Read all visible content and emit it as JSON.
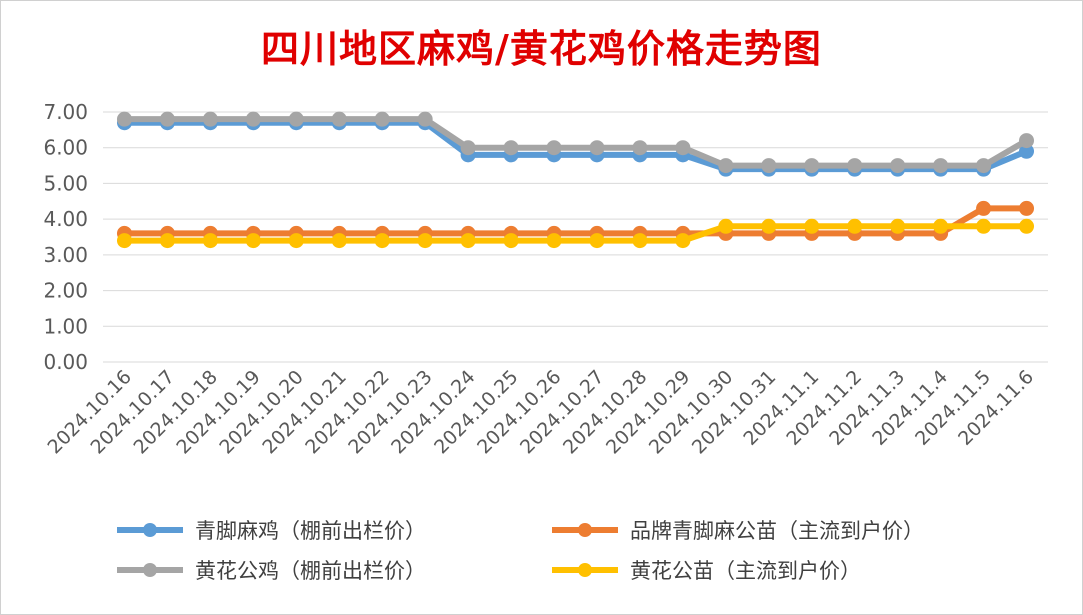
{
  "chart_data": {
    "type": "line",
    "title": "四川地区麻鸡/黄花鸡价格走势图",
    "x": [
      "2024.10.16",
      "2024.10.17",
      "2024.10.18",
      "2024.10.19",
      "2024.10.20",
      "2024.10.21",
      "2024.10.22",
      "2024.10.23",
      "2024.10.24",
      "2024.10.25",
      "2024.10.26",
      "2024.10.27",
      "2024.10.28",
      "2024.10.29",
      "2024.10.30",
      "2024.10.31",
      "2024.11.1",
      "2024.11.2",
      "2024.11.3",
      "2024.11.4",
      "2024.11.5",
      "2024.11.6"
    ],
    "y_ticks": [
      "0.00",
      "1.00",
      "2.00",
      "3.00",
      "4.00",
      "5.00",
      "6.00",
      "7.00"
    ],
    "ylim": [
      0,
      7
    ],
    "grid": true,
    "legend_position": "bottom",
    "series": [
      {
        "name": "青脚麻鸡（棚前出栏价）",
        "color": "#5b9bd5",
        "values": [
          6.7,
          6.7,
          6.7,
          6.7,
          6.7,
          6.7,
          6.7,
          6.7,
          5.8,
          5.8,
          5.8,
          5.8,
          5.8,
          5.8,
          5.4,
          5.4,
          5.4,
          5.4,
          5.4,
          5.4,
          5.4,
          5.9
        ]
      },
      {
        "name": "品牌青脚麻公苗（主流到户价）",
        "color": "#ed7d31",
        "values": [
          3.6,
          3.6,
          3.6,
          3.6,
          3.6,
          3.6,
          3.6,
          3.6,
          3.6,
          3.6,
          3.6,
          3.6,
          3.6,
          3.6,
          3.6,
          3.6,
          3.6,
          3.6,
          3.6,
          3.6,
          4.3,
          4.3
        ]
      },
      {
        "name": "黄花公鸡（棚前出栏价）",
        "color": "#a5a5a5",
        "values": [
          6.8,
          6.8,
          6.8,
          6.8,
          6.8,
          6.8,
          6.8,
          6.8,
          6.0,
          6.0,
          6.0,
          6.0,
          6.0,
          6.0,
          5.5,
          5.5,
          5.5,
          5.5,
          5.5,
          5.5,
          5.5,
          6.2
        ]
      },
      {
        "name": "黄花公苗（主流到户价）",
        "color": "#ffc000",
        "values": [
          3.4,
          3.4,
          3.4,
          3.4,
          3.4,
          3.4,
          3.4,
          3.4,
          3.4,
          3.4,
          3.4,
          3.4,
          3.4,
          3.4,
          3.8,
          3.8,
          3.8,
          3.8,
          3.8,
          3.8,
          3.8,
          3.8
        ]
      }
    ]
  }
}
